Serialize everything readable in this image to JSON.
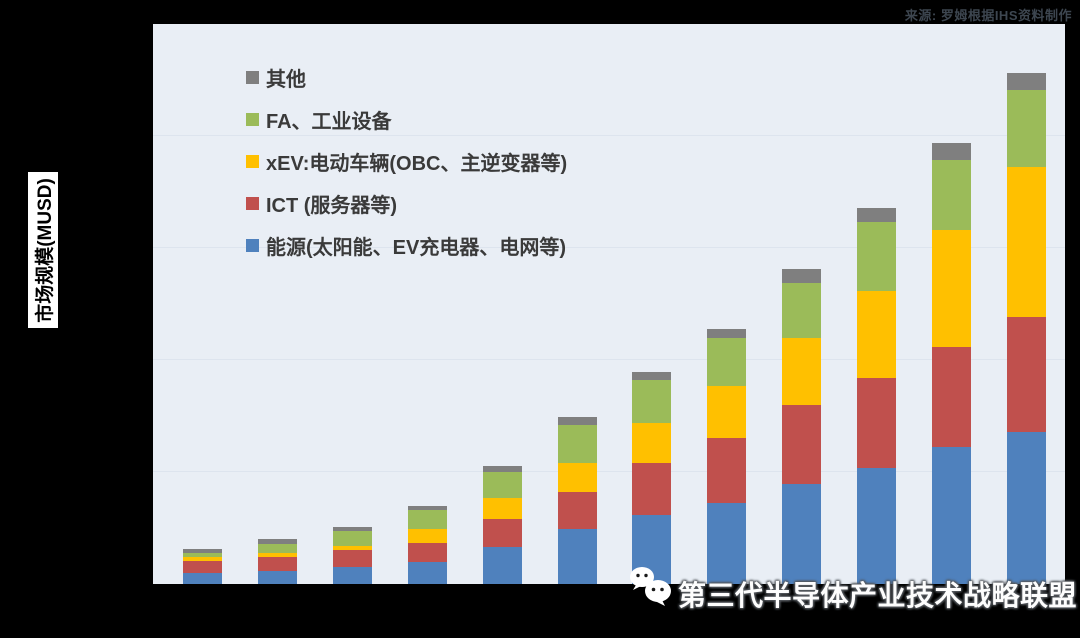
{
  "source_note": "来源: 罗姆根据IHS资料制作",
  "watermark": {
    "icon": "wechat-icon",
    "text": "第三代半导体产业技术战略联盟"
  },
  "colors": {
    "canvas_bg": "#000000",
    "plot_bg": "#E9EEF5",
    "gridline": "#DDE4EE",
    "ylabel_box_bg": "#FFFFFF",
    "source_text": "#3D4650",
    "legend_text": "#3A3A3A",
    "watermark_text": "#FFFFFF"
  },
  "chart_data": {
    "type": "bar",
    "stacked": true,
    "title": "",
    "xlabel": "",
    "ylabel": "市场规模(MUSD)",
    "x_tick_labels_visible": false,
    "y_tick_labels_visible": false,
    "value_units": "relative units (axis unlabeled; 1 gridline division = 100)",
    "n_bars": 12,
    "ylim": [
      0,
      500
    ],
    "y_gridline_interval": 100,
    "grid": "horizontal",
    "legend_position": "top-left-inside",
    "series": [
      {
        "name": "其他",
        "color": "#7F7F7F",
        "values": [
          3,
          4,
          4,
          4,
          5,
          7,
          7,
          8,
          12,
          13,
          15,
          15
        ]
      },
      {
        "name": "FA、工业设备",
        "color": "#9BBB59",
        "values": [
          4,
          8,
          13,
          17,
          23,
          34,
          38,
          43,
          49,
          61,
          63,
          69
        ]
      },
      {
        "name": "xEV:电动车辆(OBC、主逆变器等)",
        "color": "#FFC000",
        "values": [
          3,
          4,
          4,
          12,
          19,
          26,
          36,
          47,
          60,
          78,
          104,
          134
        ]
      },
      {
        "name": "ICT (服务器等)",
        "color": "#C0504D",
        "values": [
          11,
          12,
          15,
          17,
          25,
          33,
          46,
          58,
          71,
          80,
          90,
          102
        ]
      },
      {
        "name": "能源(太阳能、EV充电器、电网等)",
        "color": "#4F81BD",
        "values": [
          10,
          12,
          15,
          20,
          33,
          49,
          62,
          72,
          89,
          104,
          122,
          136
        ]
      }
    ],
    "stack_order_bottom_to_top": [
      "能源(太阳能、EV充电器、电网等)",
      "ICT (服务器等)",
      "xEV:电动车辆(OBC、主逆变器等)",
      "FA、工业设备",
      "其他"
    ]
  }
}
